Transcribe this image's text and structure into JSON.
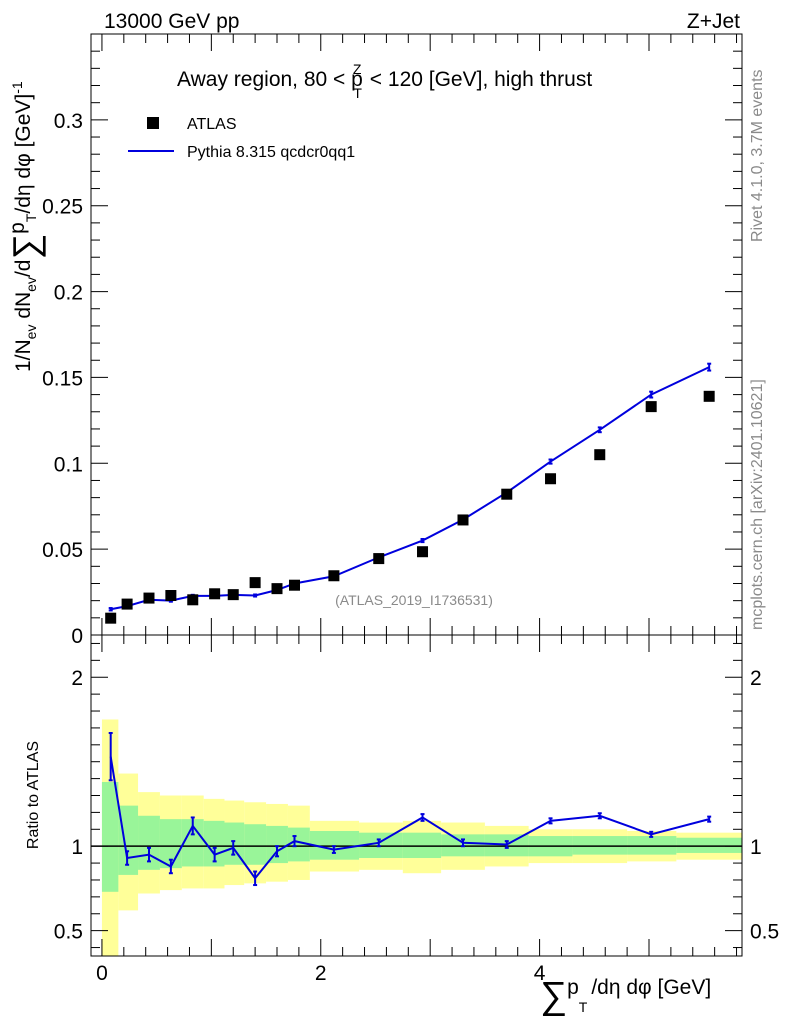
{
  "header": {
    "energy_label": "13000 GeV pp",
    "process_label": "Z+Jet",
    "rivet_label": "Rivet 4.1.0,  3.7M events",
    "mcplots_label": "mcplots.cern.ch [arXiv:2401.10621]",
    "analysis_label": "(ATLAS_2019_I1736531)"
  },
  "chart_data": [
    {
      "type": "scatter",
      "title": "Away region, 80 < pTZ < 120 [GeV], high thrust",
      "title_parts": {
        "pre": "Away region, 80 < p",
        "sup": "Z",
        "sub": "T",
        "post": " < 120 [GeV], high thrust"
      },
      "ylabel": "1/Nev dNev/d∑pT/dη dφ [GeV]-1",
      "ylabel_parts": {
        "a": "1/N",
        "a_sub": "ev",
        "b": " dN",
        "b_sub": "ev",
        "c": "/d",
        "sum": "∑",
        "d": "p",
        "d_sub": "T",
        "e": "/dη dφ  [GeV]",
        "e_sup": "-1"
      },
      "xlim": [
        -0.1,
        5.85
      ],
      "ylim": [
        0,
        0.35
      ],
      "yticks": [
        0,
        0.05,
        0.1,
        0.15,
        0.2,
        0.25,
        0.3
      ],
      "ytick_labels": [
        "0",
        "0.05",
        "0.1",
        "0.15",
        "0.2",
        "0.25",
        "0.3"
      ],
      "legend": {
        "position": "top-left",
        "entries": [
          "ATLAS",
          "Pythia 8.315 qcdcr0qq1"
        ]
      },
      "x": [
        0.08,
        0.23,
        0.43,
        0.63,
        0.83,
        1.03,
        1.2,
        1.4,
        1.6,
        1.76,
        2.12,
        2.53,
        2.93,
        3.3,
        3.7,
        4.1,
        4.55,
        5.02,
        5.55
      ],
      "series": [
        {
          "name": "ATLAS",
          "values": [
            0.0098,
            0.018,
            0.0215,
            0.023,
            0.0205,
            0.024,
            0.0235,
            0.0305,
            0.027,
            0.029,
            0.0345,
            0.0445,
            0.0485,
            0.067,
            0.082,
            0.091,
            0.105,
            0.133,
            0.139
          ]
        },
        {
          "name": "Pythia 8.315 qcdcr0qq1",
          "values": [
            0.015,
            0.0168,
            0.0205,
            0.02,
            0.0228,
            0.0228,
            0.0234,
            0.023,
            0.0262,
            0.03,
            0.0342,
            0.0452,
            0.055,
            0.0672,
            0.083,
            0.101,
            0.1195,
            0.14,
            0.156
          ],
          "errors": [
            0.0007,
            0.0006,
            0.0006,
            0.0006,
            0.0006,
            0.0006,
            0.0006,
            0.0006,
            0.0006,
            0.0006,
            0.0007,
            0.0008,
            0.0009,
            0.001,
            0.0011,
            0.0012,
            0.0014,
            0.0017,
            0.002
          ]
        }
      ]
    },
    {
      "type": "line",
      "ylabel": "Ratio to ATLAS",
      "xlabel": "∑pT/dη dφ [GeV]",
      "xlabel_parts": {
        "sum": "∑",
        "a": "p",
        "a_sub": "T",
        "b": "/dη dφ [GeV]"
      },
      "xlim": [
        -0.1,
        5.85
      ],
      "ylim": [
        0.35,
        2.25
      ],
      "yticks": [
        0.5,
        1,
        2
      ],
      "ytick_labels": [
        "0.5",
        "1",
        "2"
      ],
      "xticks": [
        0,
        2,
        4
      ],
      "xtick_labels": [
        "0",
        "2",
        "4"
      ],
      "band_edges": [
        0.0,
        0.15,
        0.33,
        0.53,
        0.73,
        0.93,
        1.12,
        1.3,
        1.5,
        1.7,
        1.9,
        2.35,
        2.75,
        3.1,
        3.5,
        3.9,
        4.3,
        4.8,
        5.25,
        5.85
      ],
      "band_inner": [
        [
          0.73,
          1.38
        ],
        [
          0.83,
          1.24
        ],
        [
          0.86,
          1.18
        ],
        [
          0.87,
          1.16
        ],
        [
          0.88,
          1.16
        ],
        [
          0.88,
          1.15
        ],
        [
          0.89,
          1.14
        ],
        [
          0.89,
          1.13
        ],
        [
          0.9,
          1.12
        ],
        [
          0.91,
          1.11
        ],
        [
          0.92,
          1.09
        ],
        [
          0.93,
          1.08
        ],
        [
          0.93,
          1.08
        ],
        [
          0.94,
          1.07
        ],
        [
          0.94,
          1.07
        ],
        [
          0.94,
          1.06
        ],
        [
          0.95,
          1.06
        ],
        [
          0.95,
          1.06
        ],
        [
          0.96,
          1.05
        ]
      ],
      "band_outer": [
        [
          0.35,
          1.75
        ],
        [
          0.62,
          1.43
        ],
        [
          0.72,
          1.32
        ],
        [
          0.74,
          1.3
        ],
        [
          0.75,
          1.3
        ],
        [
          0.75,
          1.28
        ],
        [
          0.77,
          1.27
        ],
        [
          0.78,
          1.26
        ],
        [
          0.79,
          1.25
        ],
        [
          0.8,
          1.24
        ],
        [
          0.85,
          1.15
        ],
        [
          0.86,
          1.14
        ],
        [
          0.84,
          1.15
        ],
        [
          0.86,
          1.14
        ],
        [
          0.88,
          1.12
        ],
        [
          0.9,
          1.1
        ],
        [
          0.9,
          1.1
        ],
        [
          0.91,
          1.09
        ],
        [
          0.92,
          1.08
        ]
      ],
      "series": [
        {
          "name": "Pythia 8.315 qcdcr0qq1 / ATLAS",
          "values": [
            1.53,
            0.93,
            0.95,
            0.88,
            1.12,
            0.95,
            0.99,
            0.81,
            0.97,
            1.03,
            0.98,
            1.02,
            1.17,
            1.02,
            1.01,
            1.15,
            1.18,
            1.07,
            1.16
          ],
          "errors": [
            0.14,
            0.04,
            0.04,
            0.04,
            0.05,
            0.04,
            0.04,
            0.04,
            0.03,
            0.03,
            0.02,
            0.02,
            0.02,
            0.02,
            0.02,
            0.015,
            0.015,
            0.015,
            0.015
          ]
        }
      ]
    }
  ],
  "colors": {
    "mc_line": "#0000dd",
    "data_marker": "#000000",
    "band_inner": "#99f599",
    "band_outer": "#ffff99",
    "axis": "#000000",
    "grey_text": "#8a8a8a"
  }
}
